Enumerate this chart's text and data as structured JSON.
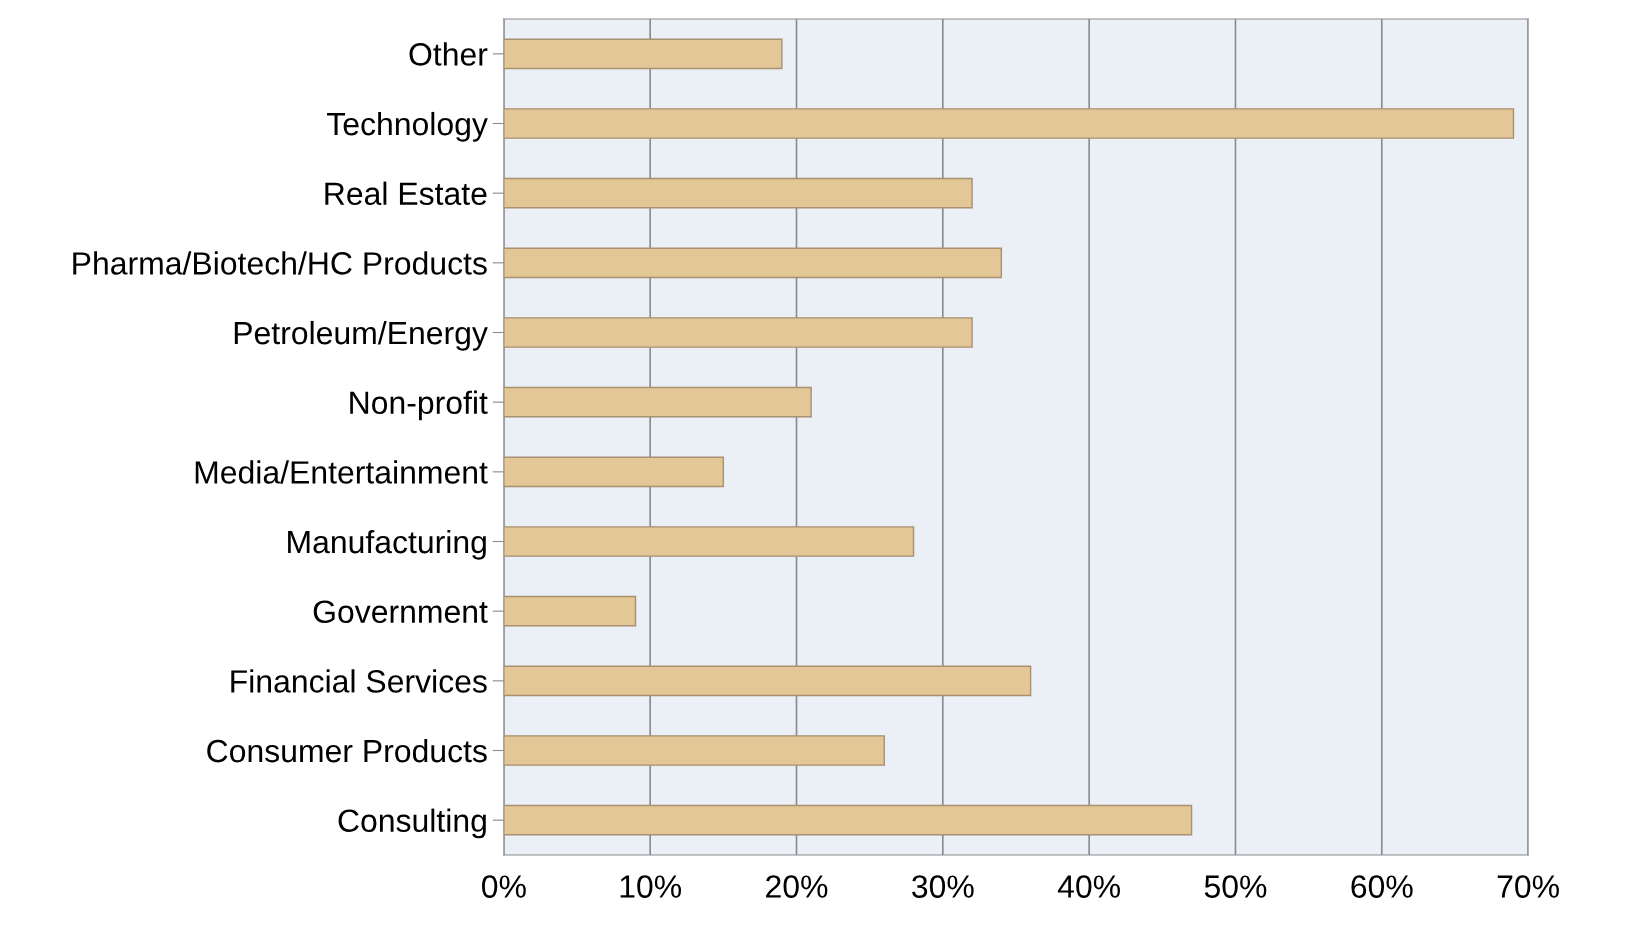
{
  "chart_data": {
    "type": "bar",
    "orientation": "horizontal",
    "categories": [
      "Other",
      "Technology",
      "Real Estate",
      "Pharma/Biotech/HC Products",
      "Petroleum/Energy",
      "Non-profit",
      "Media/Entertainment",
      "Manufacturing",
      "Government",
      "Financial Services",
      "Consumer Products",
      "Consulting"
    ],
    "values": [
      19,
      69,
      32,
      34,
      32,
      21,
      15,
      28,
      9,
      36,
      26,
      47
    ],
    "color": "#e3c796",
    "xlim": [
      0,
      70
    ],
    "xticks": [
      {
        "value": 0,
        "label": "0%"
      },
      {
        "value": 10,
        "label": "10%"
      },
      {
        "value": 20,
        "label": "20%"
      },
      {
        "value": 30,
        "label": "30%"
      },
      {
        "value": 40,
        "label": "40%"
      },
      {
        "value": 50,
        "label": "50%"
      },
      {
        "value": 60,
        "label": "60%"
      },
      {
        "value": 70,
        "label": "70%"
      }
    ],
    "grid": "x",
    "legend": false
  }
}
